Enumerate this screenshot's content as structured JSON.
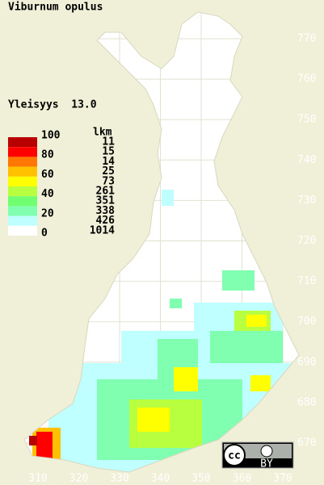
{
  "title": "Viburnum opulus",
  "frequency_label": "Yleisyys  13.0",
  "legend": {
    "scale_labels": [
      100,
      80,
      60,
      40,
      20,
      0
    ],
    "count_header": "lkm",
    "counts": [
      11,
      15,
      14,
      25,
      73,
      261,
      351,
      338,
      426,
      1014
    ]
  },
  "y_axis_labels": [
    770,
    760,
    750,
    740,
    730,
    720,
    710,
    700,
    690,
    680,
    670
  ],
  "x_axis_labels": [
    310,
    320,
    330,
    340,
    350,
    360,
    370
  ],
  "license": {
    "logo": "cc",
    "badge": "BY"
  }
}
